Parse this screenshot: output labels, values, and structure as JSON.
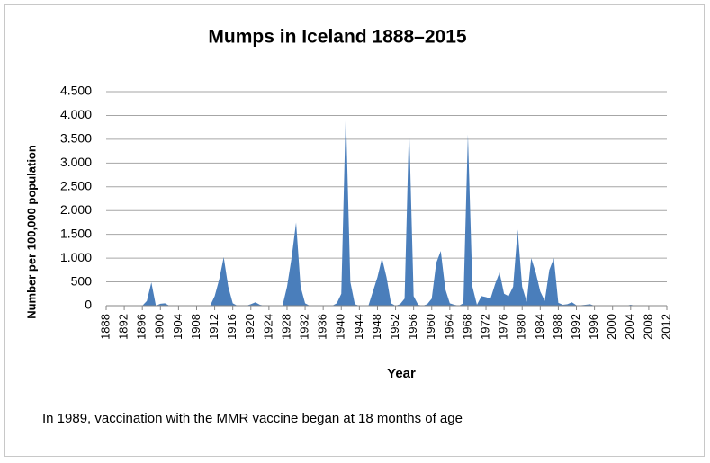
{
  "chart_data": {
    "type": "area",
    "title": "Mumps in Iceland 1888–2015",
    "x_label": "Year",
    "y_label": "Number per 100,000 population",
    "annotation": "In 1989, vaccination with the MMR vaccine began at 18 months of age",
    "x": [
      1888,
      1889,
      1890,
      1891,
      1892,
      1893,
      1894,
      1895,
      1896,
      1897,
      1898,
      1899,
      1900,
      1901,
      1902,
      1903,
      1904,
      1905,
      1906,
      1907,
      1908,
      1909,
      1910,
      1911,
      1912,
      1913,
      1914,
      1915,
      1916,
      1917,
      1918,
      1919,
      1920,
      1921,
      1922,
      1923,
      1924,
      1925,
      1926,
      1927,
      1928,
      1929,
      1930,
      1931,
      1932,
      1933,
      1934,
      1935,
      1936,
      1937,
      1938,
      1939,
      1940,
      1941,
      1942,
      1943,
      1944,
      1945,
      1946,
      1947,
      1948,
      1949,
      1950,
      1951,
      1952,
      1953,
      1954,
      1955,
      1956,
      1957,
      1958,
      1959,
      1960,
      1961,
      1962,
      1963,
      1964,
      1965,
      1966,
      1967,
      1968,
      1969,
      1970,
      1971,
      1972,
      1973,
      1974,
      1975,
      1976,
      1977,
      1978,
      1979,
      1980,
      1981,
      1982,
      1983,
      1984,
      1985,
      1986,
      1987,
      1988,
      1989,
      1990,
      1991,
      1992,
      1993,
      1994,
      1995,
      1996,
      1997,
      1998,
      1999,
      2000,
      2001,
      2002,
      2003,
      2004,
      2005,
      2006,
      2007,
      2008,
      2009,
      2010,
      2011,
      2012
    ],
    "values": [
      0,
      0,
      0,
      0,
      0,
      0,
      0,
      0,
      0,
      100,
      490,
      0,
      40,
      50,
      0,
      0,
      0,
      0,
      0,
      0,
      0,
      0,
      0,
      0,
      200,
      550,
      1020,
      400,
      50,
      0,
      0,
      0,
      30,
      70,
      20,
      0,
      0,
      0,
      0,
      0,
      400,
      1000,
      1750,
      400,
      50,
      0,
      0,
      0,
      0,
      0,
      0,
      50,
      250,
      4100,
      500,
      30,
      0,
      0,
      0,
      300,
      600,
      1000,
      600,
      50,
      0,
      30,
      150,
      3800,
      200,
      20,
      0,
      30,
      150,
      900,
      1150,
      350,
      50,
      20,
      0,
      50,
      3600,
      400,
      20,
      200,
      180,
      150,
      450,
      700,
      250,
      200,
      400,
      1600,
      400,
      80,
      1000,
      700,
      300,
      100,
      750,
      1000,
      60,
      20,
      30,
      70,
      10,
      10,
      20,
      30,
      0,
      0,
      0,
      0,
      0,
      0,
      0,
      0,
      20,
      0,
      0,
      0,
      0,
      0,
      0,
      0,
      0
    ],
    "color": "#4a7ebb",
    "xlim": [
      1888,
      2012
    ],
    "xticks": [
      1888,
      1892,
      1896,
      1900,
      1904,
      1908,
      1912,
      1916,
      1920,
      1924,
      1928,
      1932,
      1936,
      1940,
      1944,
      1948,
      1952,
      1956,
      1960,
      1964,
      1968,
      1972,
      1976,
      1980,
      1984,
      1988,
      1992,
      1996,
      2000,
      2004,
      2008,
      2012
    ],
    "ylim": [
      0,
      4500
    ],
    "yticks": [
      0,
      500,
      {
        "value": 1000,
        "label": "1.000"
      },
      {
        "value": 1500,
        "label": "1.500"
      },
      {
        "value": 2000,
        "label": "2.000"
      },
      {
        "value": 2500,
        "label": "2.500"
      },
      {
        "value": 3000,
        "label": "3.000"
      },
      {
        "value": 3500,
        "label": "3.500"
      },
      {
        "value": 4000,
        "label": "4.000"
      },
      {
        "value": 4500,
        "label": "4.500"
      }
    ],
    "grid": true
  }
}
